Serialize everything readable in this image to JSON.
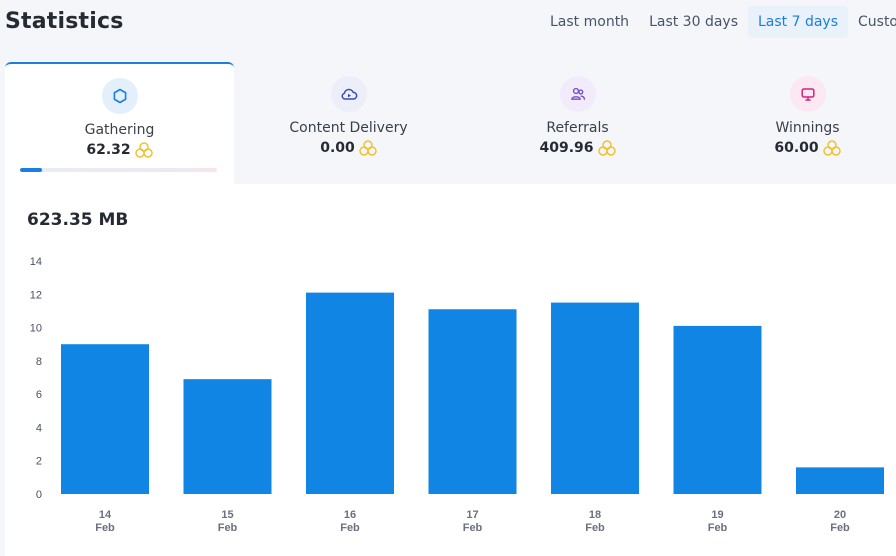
{
  "header": {
    "title": "Statistics"
  },
  "ranges": [
    {
      "label": "Last month"
    },
    {
      "label": "Last 30 days"
    },
    {
      "label": "Last 7 days",
      "active": true
    },
    {
      "label": "Custom"
    }
  ],
  "cards": [
    {
      "label": "Gathering",
      "value": "62.32",
      "icon": "hexagon-icon",
      "icon_color": "#1a7fe0",
      "icon_bg": "#e3f0fc"
    },
    {
      "label": "Content Delivery",
      "value": "0.00",
      "icon": "cloud-play-icon",
      "icon_color": "#3b4bb5",
      "icon_bg": "#eceefa"
    },
    {
      "label": "Referrals",
      "value": "409.96",
      "icon": "users-icon",
      "icon_color": "#7a4fc7",
      "icon_bg": "#f1ebfb"
    },
    {
      "label": "Winnings",
      "value": "60.00",
      "icon": "trophy-icon",
      "icon_color": "#d61f7a",
      "icon_bg": "#fce8f2"
    }
  ],
  "progress": {
    "fraction": 0.11
  },
  "summary": {
    "total": "623.35 MB"
  },
  "colors": {
    "accent": "#1a7fe0",
    "bar": "#1185e3",
    "coin": "#f2c12e"
  },
  "chart_data": {
    "type": "bar",
    "categories": [
      {
        "day": "14",
        "month": "Feb"
      },
      {
        "day": "15",
        "month": "Feb"
      },
      {
        "day": "16",
        "month": "Feb"
      },
      {
        "day": "17",
        "month": "Feb"
      },
      {
        "day": "18",
        "month": "Feb"
      },
      {
        "day": "19",
        "month": "Feb"
      },
      {
        "day": "20",
        "month": "Feb"
      }
    ],
    "values": [
      9.0,
      6.9,
      12.1,
      11.1,
      11.5,
      10.1,
      1.6
    ],
    "yticks": [
      0,
      2,
      4,
      6,
      8,
      10,
      12,
      14
    ],
    "ylim": [
      0,
      14
    ],
    "grid": false
  }
}
